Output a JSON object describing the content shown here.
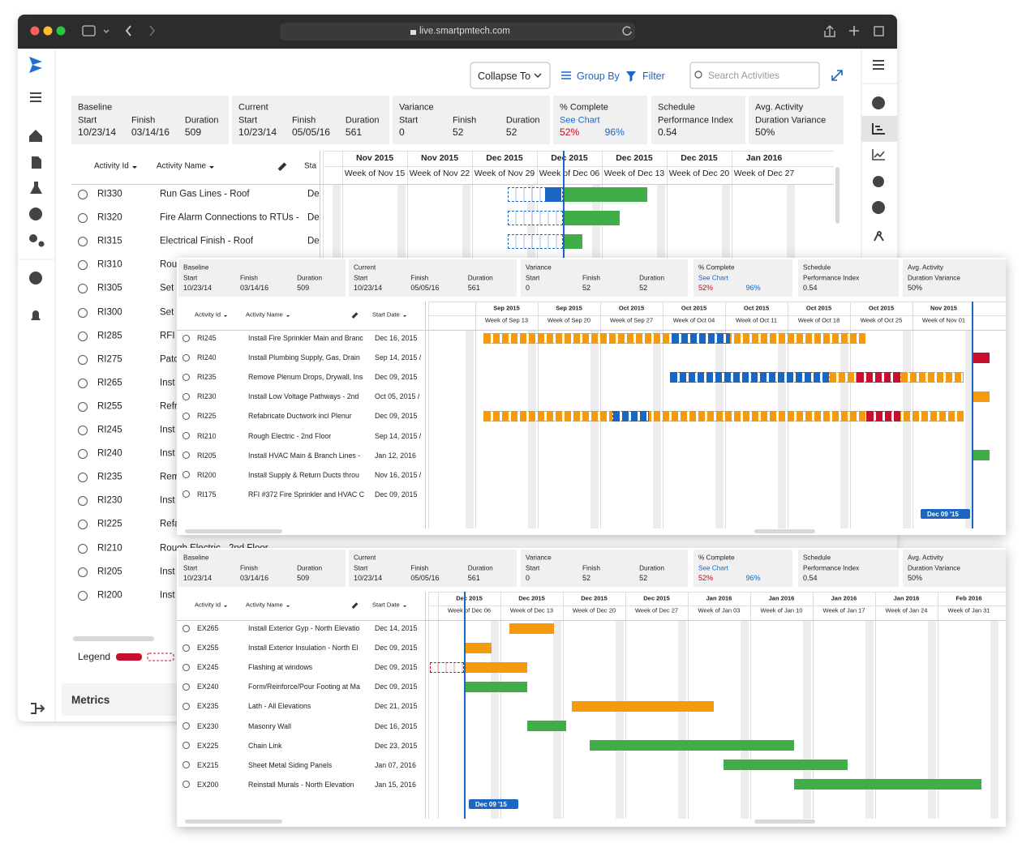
{
  "browser": {
    "url": "live.smartpmtech.com"
  },
  "toolbar": {
    "collapse": "Collapse To",
    "group_by": "Group By",
    "filter": "Filter",
    "search_placeholder": "Search Activities"
  },
  "legend": "Legend",
  "metrics": "Metrics",
  "panels": [
    {
      "cards": [
        {
          "title": "Baseline",
          "labels": [
            "Start",
            "Finish",
            "Duration"
          ],
          "values": [
            "10/23/14",
            "03/14/16",
            509
          ]
        },
        {
          "title": "Current",
          "labels": [
            "Start",
            "Finish",
            "Duration"
          ],
          "values": [
            "10/23/14",
            "05/05/16",
            561
          ]
        },
        {
          "title": "Variance",
          "labels": [
            "Start",
            "Finish",
            "Duration"
          ],
          "values": [
            0,
            52,
            52
          ]
        },
        {
          "title": "% Complete",
          "link": "See Chart",
          "values": [
            "52%",
            "96%"
          ],
          "value_colors": [
            "#d0021b",
            "#1a66c2"
          ]
        },
        {
          "title": [
            "Schedule",
            "Performance Index"
          ],
          "values": [
            0.54
          ]
        },
        {
          "title": [
            "Avg. Activity",
            "Duration Variance"
          ],
          "values": [
            "50%"
          ]
        }
      ],
      "columns": [
        "Activity Id",
        "Activity Name",
        "Sta"
      ],
      "months": [
        "Nov 2015",
        "Nov 2015",
        "Dec 2015",
        "Dec 2015",
        "Dec 2015",
        "Dec 2015",
        "Jan 2016"
      ],
      "weeks": [
        "Week of Nov 15",
        "Week of Nov 22",
        "Week of Nov 29",
        "Week of Dec 06",
        "Week of Dec 13",
        "Week of Dec 20",
        "Week of Dec 27"
      ],
      "rows": [
        {
          "id": "RI330",
          "name": "Run Gas Lines - Roof",
          "start": "De"
        },
        {
          "id": "RI320",
          "name": "Fire Alarm Connections to RTUs -",
          "start": "De"
        },
        {
          "id": "RI315",
          "name": "Electrical Finish - Roof",
          "start": "De"
        },
        {
          "id": "RI310",
          "name": "Rou"
        },
        {
          "id": "RI305",
          "name": "Set"
        },
        {
          "id": "RI300",
          "name": "Set"
        },
        {
          "id": "RI285",
          "name": "RFI"
        },
        {
          "id": "RI275",
          "name": "Patc"
        },
        {
          "id": "RI265",
          "name": "Inst"
        },
        {
          "id": "RI255",
          "name": "Refr"
        },
        {
          "id": "RI245",
          "name": "Inst"
        },
        {
          "id": "RI240",
          "name": "Inst"
        },
        {
          "id": "RI235",
          "name": "Rem"
        },
        {
          "id": "RI230",
          "name": "Inst"
        },
        {
          "id": "RI225",
          "name": "Refa"
        },
        {
          "id": "RI210",
          "name": "Rough Electric - 2nd Floor"
        },
        {
          "id": "RI205",
          "name": "Inst"
        },
        {
          "id": "RI200",
          "name": "Inst"
        }
      ]
    },
    {
      "cards": [
        {
          "title": "Baseline",
          "labels": [
            "Start",
            "Finish",
            "Duration"
          ],
          "values": [
            "10/23/14",
            "03/14/16",
            509
          ]
        },
        {
          "title": "Current",
          "labels": [
            "Start",
            "Finish",
            "Duration"
          ],
          "values": [
            "10/23/14",
            "05/05/16",
            561
          ]
        },
        {
          "title": "Variance",
          "labels": [
            "Start",
            "Finish",
            "Duration"
          ],
          "values": [
            0,
            52,
            52
          ]
        },
        {
          "title": "% Complete",
          "link": "See Chart",
          "values": [
            "52%",
            "96%"
          ],
          "value_colors": [
            "#d0021b",
            "#1a66c2"
          ]
        },
        {
          "title": [
            "Schedule",
            "Performance Index"
          ],
          "values": [
            0.54
          ]
        },
        {
          "title": [
            "Avg. Activity",
            "Duration Variance"
          ],
          "values": [
            "50%"
          ]
        }
      ],
      "columns": [
        "Activity Id",
        "Activity Name",
        "Start Date"
      ],
      "months": [
        "Sep 2015",
        "Sep 2015",
        "Oct 2015",
        "Oct 2015",
        "Oct 2015",
        "Oct 2015",
        "Oct 2015",
        "Nov 2015"
      ],
      "weeks": [
        "Week of Sep 13",
        "Week of Sep 20",
        "Week of Sep 27",
        "Week of Oct 04",
        "Week of Oct 11",
        "Week of Oct 18",
        "Week of Oct 25",
        "Week of Nov 01"
      ],
      "rows": [
        {
          "id": "RI245",
          "name": "Install Fire Sprinkler Main and Branc",
          "start": "Dec 16, 2015"
        },
        {
          "id": "RI240",
          "name": "Install Plumbing Supply, Gas, Drain",
          "start": "Sep 14, 2015 /"
        },
        {
          "id": "RI235",
          "name": "Remove Plenum Drops, Drywall, Ins",
          "start": "Dec 09, 2015"
        },
        {
          "id": "RI230",
          "name": "Install Low Voltage Pathways - 2nd",
          "start": "Oct 05, 2015 /"
        },
        {
          "id": "RI225",
          "name": "Refabricate Ductwork incl Plenur",
          "start": "Dec 09, 2015"
        },
        {
          "id": "RI210",
          "name": "Rough Electric - 2nd Floor",
          "start": "Sep 14, 2015 /"
        },
        {
          "id": "RI205",
          "name": "Install HVAC Main & Branch Lines -",
          "start": "Jan 12, 2016"
        },
        {
          "id": "RI200",
          "name": "Install Supply & Return Ducts throu",
          "start": "Nov 16, 2015 /"
        },
        {
          "id": "RI175",
          "name": "RFI #372 Fire Sprinkler and HVAC C",
          "start": "Dec 09, 2015"
        }
      ],
      "today": "Dec 09 '15"
    },
    {
      "cards": [
        {
          "title": "Baseline",
          "labels": [
            "Start",
            "Finish",
            "Duration"
          ],
          "values": [
            "10/23/14",
            "03/14/16",
            509
          ]
        },
        {
          "title": "Current",
          "labels": [
            "Start",
            "Finish",
            "Duration"
          ],
          "values": [
            "10/23/14",
            "05/05/16",
            561
          ]
        },
        {
          "title": "Variance",
          "labels": [
            "Start",
            "Finish",
            "Duration"
          ],
          "values": [
            0,
            52,
            52
          ]
        },
        {
          "title": "% Complete",
          "link": "See Chart",
          "values": [
            "52%",
            "96%"
          ],
          "value_colors": [
            "#d0021b",
            "#1a66c2"
          ]
        },
        {
          "title": [
            "Schedule",
            "Performance Index"
          ],
          "values": [
            0.54
          ]
        },
        {
          "title": [
            "Avg. Activity",
            "Duration Variance"
          ],
          "values": [
            "50%"
          ]
        }
      ],
      "columns": [
        "Activity Id",
        "Activity Name",
        "Start Date"
      ],
      "months": [
        "Dec 2015",
        "Dec 2015",
        "Dec 2015",
        "Dec 2015",
        "Jan 2016",
        "Jan 2016",
        "Jan 2016",
        "Jan 2016",
        "Feb 2016"
      ],
      "weeks": [
        "Week of Dec 06",
        "Week of Dec 13",
        "Week of Dec 20",
        "Week of Dec 27",
        "Week of Jan 03",
        "Week of Jan 10",
        "Week of Jan 17",
        "Week of Jan 24",
        "Week of Jan 31"
      ],
      "rows": [
        {
          "id": "EX265",
          "name": "Install Exterior Gyp - North Elevatio",
          "start": "Dec 14, 2015"
        },
        {
          "id": "EX255",
          "name": "Install Exterior Insulation - North El",
          "start": "Dec 09, 2015"
        },
        {
          "id": "EX245",
          "name": "Flashing at windows",
          "start": "Dec 09, 2015"
        },
        {
          "id": "EX240",
          "name": "Form/Reinforce/Pour Footing at Ma",
          "start": "Dec 09, 2015"
        },
        {
          "id": "EX235",
          "name": "Lath - All Elevations",
          "start": "Dec 21, 2015"
        },
        {
          "id": "EX230",
          "name": "Masonry Wall",
          "start": "Dec 16, 2015"
        },
        {
          "id": "EX225",
          "name": "Chain Link",
          "start": "Dec 23, 2015"
        },
        {
          "id": "EX215",
          "name": "Sheet Metal Siding Panels",
          "start": "Jan 07, 2016"
        },
        {
          "id": "EX200",
          "name": "Reinstall Murals - North Elevation",
          "start": "Jan 15, 2016"
        }
      ],
      "today": "Dec 09 '15"
    }
  ]
}
